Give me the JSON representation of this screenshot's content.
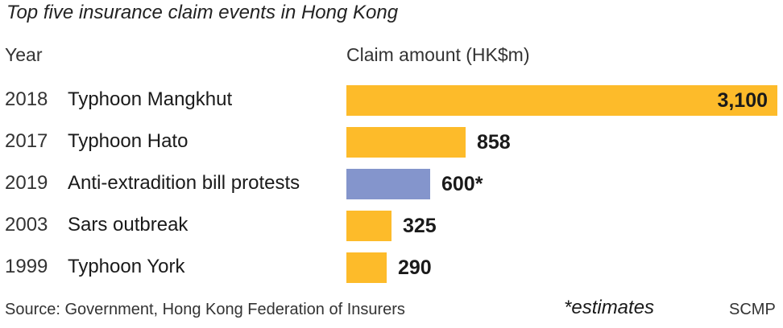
{
  "title": "Top five insurance claim events in Hong Kong",
  "headers": {
    "year": "Year",
    "amount": "Claim amount (HK$m)"
  },
  "footer": {
    "source": "Source: Government, Hong Kong Federation of Insurers",
    "note": "*estimates",
    "credit": "SCMP"
  },
  "colors": {
    "default": "#FDBB2A",
    "estimate": "#8495CC"
  },
  "chart_data": {
    "type": "bar",
    "orientation": "horizontal",
    "title": "Top five insurance claim events in Hong Kong",
    "xlabel": "Claim amount (HK$m)",
    "ylabel": "Year",
    "categories": [
      "Typhoon Mangkhut",
      "Typhoon Hato",
      "Anti-extradition bill protests",
      "Sars outbreak",
      "Typhoon York"
    ],
    "years": [
      "2018",
      "2017",
      "2019",
      "2003",
      "1999"
    ],
    "values": [
      3100,
      858,
      600,
      325,
      290
    ],
    "labels": [
      "3,100",
      "858",
      "600*",
      "325",
      "290"
    ],
    "estimate": [
      false,
      false,
      true,
      false,
      false
    ],
    "xlim": [
      0,
      3100
    ],
    "grid": false,
    "legend": "none"
  }
}
